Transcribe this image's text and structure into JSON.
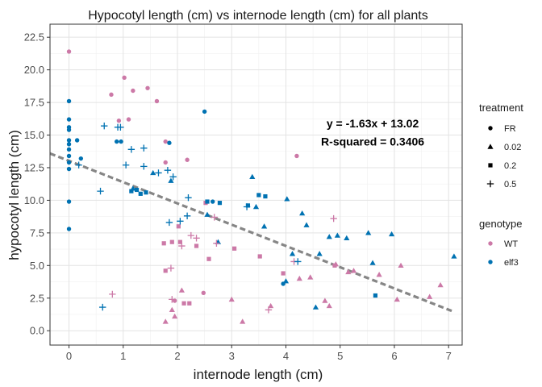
{
  "chart_data": {
    "type": "scatter",
    "title": "Hypocotyl length (cm) vs internode length (cm) for all plants",
    "xlabel": "internode length (cm)",
    "ylabel": "hypocotyl length (cm)",
    "xlim": [
      -0.35,
      7.25
    ],
    "ylim": [
      -1.1,
      23.5
    ],
    "x_ticks": [
      0,
      1,
      2,
      3,
      4,
      5,
      6,
      7
    ],
    "y_ticks": [
      0.0,
      2.5,
      5.0,
      7.5,
      10.0,
      12.5,
      15.0,
      17.5,
      20.0,
      22.5
    ],
    "y_tick_labels": [
      "0.0",
      "2.5",
      "5.0",
      "7.5",
      "10.0",
      "12.5",
      "15.0",
      "17.5",
      "20.0",
      "22.5"
    ],
    "grid": true,
    "legend_position": "right",
    "legend_treatment": {
      "title": "treatment",
      "items": [
        {
          "label": "FR",
          "shape": "circle"
        },
        {
          "label": "0.02",
          "shape": "triangle"
        },
        {
          "label": "0.2",
          "shape": "square"
        },
        {
          "label": "0.5",
          "shape": "plus"
        }
      ]
    },
    "legend_genotype": {
      "title": "genotype",
      "items": [
        {
          "label": "WT",
          "color": "#CC79A7"
        },
        {
          "label": "elf3",
          "color": "#0072B2"
        }
      ]
    },
    "regression": {
      "slope": -1.63,
      "intercept": 13.02,
      "x_range": [
        -0.35,
        7.1
      ],
      "color": "#808080",
      "style": "dashed"
    },
    "annotation": {
      "equation": "y = -1.63x + 13.02",
      "r_squared": "R-squared = 0.3406",
      "anchor_x": 5.6,
      "anchor_y1": 15.6,
      "anchor_y2": 14.2
    },
    "points": [
      {
        "x": 0.0,
        "y": 21.4,
        "g": "WT",
        "t": "FR"
      },
      {
        "x": 0.0,
        "y": 17.6,
        "g": "elf3",
        "t": "FR"
      },
      {
        "x": 0.0,
        "y": 16.2,
        "g": "elf3",
        "t": "FR"
      },
      {
        "x": 0.0,
        "y": 15.6,
        "g": "elf3",
        "t": "FR"
      },
      {
        "x": 0.0,
        "y": 15.4,
        "g": "elf3",
        "t": "FR"
      },
      {
        "x": 0.0,
        "y": 14.6,
        "g": "elf3",
        "t": "FR"
      },
      {
        "x": 0.0,
        "y": 14.3,
        "g": "elf3",
        "t": "FR"
      },
      {
        "x": 0.0,
        "y": 13.9,
        "g": "elf3",
        "t": "FR"
      },
      {
        "x": 0.0,
        "y": 13.4,
        "g": "elf3",
        "t": "FR"
      },
      {
        "x": 0.0,
        "y": 12.9,
        "g": "elf3",
        "t": "FR"
      },
      {
        "x": 0.0,
        "y": 12.4,
        "g": "elf3",
        "t": "FR"
      },
      {
        "x": 0.0,
        "y": 9.9,
        "g": "elf3",
        "t": "FR"
      },
      {
        "x": 0.0,
        "y": 7.8,
        "g": "elf3",
        "t": "FR"
      },
      {
        "x": 0.15,
        "y": 14.6,
        "g": "elf3",
        "t": "FR"
      },
      {
        "x": 0.22,
        "y": 13.2,
        "g": "elf3",
        "t": "FR"
      },
      {
        "x": 0.78,
        "y": 18.1,
        "g": "WT",
        "t": "FR"
      },
      {
        "x": 0.88,
        "y": 14.5,
        "g": "elf3",
        "t": "FR"
      },
      {
        "x": 0.92,
        "y": 16.1,
        "g": "WT",
        "t": "FR"
      },
      {
        "x": 0.96,
        "y": 14.5,
        "g": "elf3",
        "t": "FR"
      },
      {
        "x": 1.02,
        "y": 19.4,
        "g": "WT",
        "t": "FR"
      },
      {
        "x": 1.1,
        "y": 16.2,
        "g": "WT",
        "t": "FR"
      },
      {
        "x": 1.18,
        "y": 18.4,
        "g": "WT",
        "t": "FR"
      },
      {
        "x": 1.45,
        "y": 18.6,
        "g": "WT",
        "t": "FR"
      },
      {
        "x": 1.62,
        "y": 17.6,
        "g": "WT",
        "t": "FR"
      },
      {
        "x": 1.78,
        "y": 14.5,
        "g": "WT",
        "t": "FR"
      },
      {
        "x": 1.85,
        "y": 14.4,
        "g": "elf3",
        "t": "FR"
      },
      {
        "x": 1.78,
        "y": 12.9,
        "g": "WT",
        "t": "FR"
      },
      {
        "x": 2.18,
        "y": 13.1,
        "g": "WT",
        "t": "FR"
      },
      {
        "x": 2.5,
        "y": 16.8,
        "g": "elf3",
        "t": "FR"
      },
      {
        "x": 2.48,
        "y": 2.9,
        "g": "WT",
        "t": "FR"
      },
      {
        "x": 1.95,
        "y": 2.3,
        "g": "WT",
        "t": "FR"
      },
      {
        "x": 2.65,
        "y": 9.9,
        "g": "elf3",
        "t": "FR"
      },
      {
        "x": 3.95,
        "y": 3.6,
        "g": "elf3",
        "t": "FR"
      },
      {
        "x": 4.2,
        "y": 13.4,
        "g": "WT",
        "t": "FR"
      },
      {
        "x": 1.18,
        "y": 10.9,
        "g": "elf3",
        "t": "0.02"
      },
      {
        "x": 1.55,
        "y": 12.1,
        "g": "elf3",
        "t": "0.02"
      },
      {
        "x": 1.88,
        "y": 11.5,
        "g": "elf3",
        "t": "0.02"
      },
      {
        "x": 1.9,
        "y": 1.6,
        "g": "WT",
        "t": "0.02"
      },
      {
        "x": 1.78,
        "y": 0.7,
        "g": "WT",
        "t": "0.02"
      },
      {
        "x": 1.95,
        "y": 1.1,
        "g": "WT",
        "t": "0.02"
      },
      {
        "x": 2.08,
        "y": 3.1,
        "g": "WT",
        "t": "0.02"
      },
      {
        "x": 2.55,
        "y": 8.9,
        "g": "elf3",
        "t": "0.02"
      },
      {
        "x": 2.75,
        "y": 6.8,
        "g": "elf3",
        "t": "0.02"
      },
      {
        "x": 3.0,
        "y": 2.4,
        "g": "WT",
        "t": "0.02"
      },
      {
        "x": 3.2,
        "y": 0.7,
        "g": "WT",
        "t": "0.02"
      },
      {
        "x": 3.38,
        "y": 11.8,
        "g": "elf3",
        "t": "0.02"
      },
      {
        "x": 3.45,
        "y": 9.5,
        "g": "elf3",
        "t": "0.02"
      },
      {
        "x": 3.6,
        "y": 8.0,
        "g": "elf3",
        "t": "0.02"
      },
      {
        "x": 3.72,
        "y": 1.9,
        "g": "WT",
        "t": "0.02"
      },
      {
        "x": 4.02,
        "y": 10.1,
        "g": "elf3",
        "t": "0.02"
      },
      {
        "x": 4.0,
        "y": 3.8,
        "g": "elf3",
        "t": "0.02"
      },
      {
        "x": 4.12,
        "y": 5.9,
        "g": "elf3",
        "t": "0.02"
      },
      {
        "x": 4.25,
        "y": 4.0,
        "g": "WT",
        "t": "0.02"
      },
      {
        "x": 4.3,
        "y": 9.0,
        "g": "elf3",
        "t": "0.02"
      },
      {
        "x": 4.38,
        "y": 8.1,
        "g": "elf3",
        "t": "0.02"
      },
      {
        "x": 4.45,
        "y": 4.1,
        "g": "WT",
        "t": "0.02"
      },
      {
        "x": 4.55,
        "y": 1.8,
        "g": "elf3",
        "t": "0.02"
      },
      {
        "x": 4.62,
        "y": 5.9,
        "g": "elf3",
        "t": "0.02"
      },
      {
        "x": 4.72,
        "y": 2.3,
        "g": "WT",
        "t": "0.02"
      },
      {
        "x": 4.8,
        "y": 1.9,
        "g": "WT",
        "t": "0.02"
      },
      {
        "x": 4.8,
        "y": 7.2,
        "g": "elf3",
        "t": "0.02"
      },
      {
        "x": 4.95,
        "y": 7.3,
        "g": "elf3",
        "t": "0.02"
      },
      {
        "x": 4.92,
        "y": 5.1,
        "g": "WT",
        "t": "0.02"
      },
      {
        "x": 5.12,
        "y": 7.1,
        "g": "elf3",
        "t": "0.02"
      },
      {
        "x": 5.15,
        "y": 4.5,
        "g": "WT",
        "t": "0.02"
      },
      {
        "x": 5.25,
        "y": 4.6,
        "g": "WT",
        "t": "0.02"
      },
      {
        "x": 5.52,
        "y": 7.5,
        "g": "elf3",
        "t": "0.02"
      },
      {
        "x": 5.6,
        "y": 5.2,
        "g": "elf3",
        "t": "0.02"
      },
      {
        "x": 5.72,
        "y": 4.3,
        "g": "WT",
        "t": "0.02"
      },
      {
        "x": 5.95,
        "y": 7.4,
        "g": "elf3",
        "t": "0.02"
      },
      {
        "x": 6.05,
        "y": 2.4,
        "g": "WT",
        "t": "0.02"
      },
      {
        "x": 6.12,
        "y": 5.0,
        "g": "WT",
        "t": "0.02"
      },
      {
        "x": 6.65,
        "y": 2.6,
        "g": "WT",
        "t": "0.02"
      },
      {
        "x": 6.85,
        "y": 3.5,
        "g": "WT",
        "t": "0.02"
      },
      {
        "x": 7.1,
        "y": 5.7,
        "g": "elf3",
        "t": "0.02"
      },
      {
        "x": 1.15,
        "y": 10.7,
        "g": "elf3",
        "t": "0.2"
      },
      {
        "x": 1.25,
        "y": 10.8,
        "g": "elf3",
        "t": "0.2"
      },
      {
        "x": 1.32,
        "y": 10.5,
        "g": "elf3",
        "t": "0.2"
      },
      {
        "x": 1.42,
        "y": 10.6,
        "g": "elf3",
        "t": "0.2"
      },
      {
        "x": 1.75,
        "y": 6.7,
        "g": "WT",
        "t": "0.2"
      },
      {
        "x": 1.78,
        "y": 4.6,
        "g": "WT",
        "t": "0.2"
      },
      {
        "x": 1.9,
        "y": 6.8,
        "g": "WT",
        "t": "0.2"
      },
      {
        "x": 2.02,
        "y": 8.0,
        "g": "WT",
        "t": "0.2"
      },
      {
        "x": 2.05,
        "y": 6.8,
        "g": "WT",
        "t": "0.2"
      },
      {
        "x": 2.12,
        "y": 2.1,
        "g": "WT",
        "t": "0.2"
      },
      {
        "x": 2.22,
        "y": 2.1,
        "g": "WT",
        "t": "0.2"
      },
      {
        "x": 2.35,
        "y": 6.5,
        "g": "WT",
        "t": "0.2"
      },
      {
        "x": 2.52,
        "y": 9.8,
        "g": "WT",
        "t": "0.2"
      },
      {
        "x": 2.55,
        "y": 9.9,
        "g": "elf3",
        "t": "0.2"
      },
      {
        "x": 2.58,
        "y": 5.5,
        "g": "WT",
        "t": "0.2"
      },
      {
        "x": 2.78,
        "y": 9.8,
        "g": "elf3",
        "t": "0.2"
      },
      {
        "x": 3.05,
        "y": 6.3,
        "g": "WT",
        "t": "0.2"
      },
      {
        "x": 3.3,
        "y": 9.6,
        "g": "elf3",
        "t": "0.2"
      },
      {
        "x": 3.5,
        "y": 10.4,
        "g": "elf3",
        "t": "0.2"
      },
      {
        "x": 3.52,
        "y": 5.7,
        "g": "WT",
        "t": "0.2"
      },
      {
        "x": 3.62,
        "y": 10.3,
        "g": "elf3",
        "t": "0.2"
      },
      {
        "x": 3.95,
        "y": 4.4,
        "g": "WT",
        "t": "0.2"
      },
      {
        "x": 4.9,
        "y": 5.0,
        "g": "WT",
        "t": "0.2"
      },
      {
        "x": 5.65,
        "y": 2.7,
        "g": "elf3",
        "t": "0.2"
      },
      {
        "x": 0.18,
        "y": 12.7,
        "g": "elf3",
        "t": "0.5"
      },
      {
        "x": 0.58,
        "y": 10.7,
        "g": "elf3",
        "t": "0.5"
      },
      {
        "x": 0.65,
        "y": 15.7,
        "g": "elf3",
        "t": "0.5"
      },
      {
        "x": 0.9,
        "y": 15.6,
        "g": "elf3",
        "t": "0.5"
      },
      {
        "x": 0.95,
        "y": 15.6,
        "g": "elf3",
        "t": "0.5"
      },
      {
        "x": 1.05,
        "y": 12.7,
        "g": "elf3",
        "t": "0.5"
      },
      {
        "x": 1.15,
        "y": 13.9,
        "g": "elf3",
        "t": "0.5"
      },
      {
        "x": 1.38,
        "y": 14.0,
        "g": "elf3",
        "t": "0.5"
      },
      {
        "x": 1.38,
        "y": 12.6,
        "g": "elf3",
        "t": "0.5"
      },
      {
        "x": 1.65,
        "y": 12.1,
        "g": "elf3",
        "t": "0.5"
      },
      {
        "x": 1.82,
        "y": 12.3,
        "g": "elf3",
        "t": "0.5"
      },
      {
        "x": 1.92,
        "y": 11.8,
        "g": "elf3",
        "t": "0.5"
      },
      {
        "x": 2.2,
        "y": 10.2,
        "g": "elf3",
        "t": "0.5"
      },
      {
        "x": 2.18,
        "y": 8.8,
        "g": "elf3",
        "t": "0.5"
      },
      {
        "x": 1.85,
        "y": 8.3,
        "g": "elf3",
        "t": "0.5"
      },
      {
        "x": 2.05,
        "y": 8.4,
        "g": "elf3",
        "t": "0.5"
      },
      {
        "x": 0.62,
        "y": 1.8,
        "g": "elf3",
        "t": "0.5"
      },
      {
        "x": 0.8,
        "y": 2.8,
        "g": "WT",
        "t": "0.5"
      },
      {
        "x": 1.88,
        "y": 4.8,
        "g": "WT",
        "t": "0.5"
      },
      {
        "x": 1.9,
        "y": 2.4,
        "g": "WT",
        "t": "0.5"
      },
      {
        "x": 2.08,
        "y": 6.5,
        "g": "WT",
        "t": "0.5"
      },
      {
        "x": 2.25,
        "y": 7.3,
        "g": "WT",
        "t": "0.5"
      },
      {
        "x": 2.35,
        "y": 7.1,
        "g": "WT",
        "t": "0.5"
      },
      {
        "x": 2.68,
        "y": 8.7,
        "g": "WT",
        "t": "0.5"
      },
      {
        "x": 2.72,
        "y": 6.7,
        "g": "WT",
        "t": "0.5"
      },
      {
        "x": 3.28,
        "y": 9.5,
        "g": "elf3",
        "t": "0.5"
      },
      {
        "x": 3.68,
        "y": 1.6,
        "g": "WT",
        "t": "0.5"
      },
      {
        "x": 4.15,
        "y": 5.3,
        "g": "WT",
        "t": "0.5"
      },
      {
        "x": 4.22,
        "y": 5.3,
        "g": "elf3",
        "t": "0.5"
      },
      {
        "x": 4.88,
        "y": 8.6,
        "g": "WT",
        "t": "0.5"
      }
    ]
  }
}
